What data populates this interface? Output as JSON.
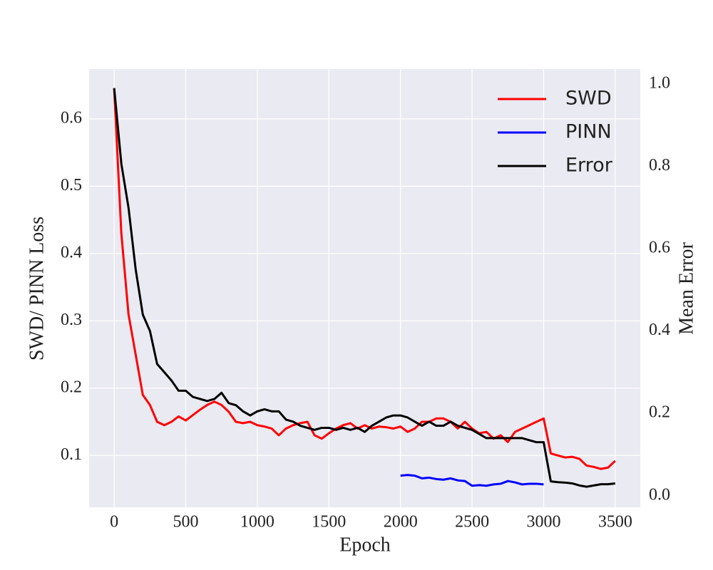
{
  "chart_data": {
    "type": "line",
    "xlabel": "Epoch",
    "ylabel": "SWD/ PINN Loss",
    "y2label": "Mean Error",
    "x": [
      0,
      50,
      100,
      150,
      200,
      250,
      300,
      350,
      400,
      450,
      500,
      550,
      600,
      650,
      700,
      750,
      800,
      850,
      900,
      950,
      1000,
      1050,
      1100,
      1150,
      1200,
      1250,
      1300,
      1350,
      1400,
      1450,
      1500,
      1550,
      1600,
      1650,
      1700,
      1750,
      1800,
      1850,
      1900,
      1950,
      2000,
      2050,
      2100,
      2150,
      2200,
      2250,
      2300,
      2350,
      2400,
      2450,
      2500,
      2550,
      2600,
      2650,
      2700,
      2750,
      2800,
      2850,
      2900,
      2950,
      3000,
      3050,
      3100,
      3150,
      3200,
      3250,
      3300,
      3350,
      3400,
      3450,
      3500
    ],
    "series": [
      {
        "name": "SWD",
        "color": "#ff0000",
        "axis": "y",
        "values": [
          0.645,
          0.43,
          0.31,
          0.25,
          0.19,
          0.175,
          0.15,
          0.145,
          0.15,
          0.158,
          0.152,
          0.16,
          0.168,
          0.175,
          0.18,
          0.175,
          0.165,
          0.15,
          0.148,
          0.15,
          0.145,
          0.143,
          0.14,
          0.13,
          0.14,
          0.145,
          0.148,
          0.15,
          0.13,
          0.125,
          0.133,
          0.14,
          0.145,
          0.148,
          0.14,
          0.145,
          0.14,
          0.143,
          0.142,
          0.14,
          0.143,
          0.135,
          0.14,
          0.15,
          0.15,
          0.155,
          0.155,
          0.15,
          0.14,
          0.15,
          0.14,
          0.133,
          0.135,
          0.125,
          0.13,
          0.12,
          0.135,
          0.14,
          0.145,
          0.15,
          0.155,
          0.103,
          0.1,
          0.097,
          0.098,
          0.095,
          0.085,
          0.083,
          0.08,
          0.082,
          0.092
        ]
      },
      {
        "name": "PINN",
        "color": "#0000ff",
        "axis": "y",
        "values": [
          null,
          null,
          null,
          null,
          null,
          null,
          null,
          null,
          null,
          null,
          null,
          null,
          null,
          null,
          null,
          null,
          null,
          null,
          null,
          null,
          null,
          null,
          null,
          null,
          null,
          null,
          null,
          null,
          null,
          null,
          null,
          null,
          null,
          null,
          null,
          null,
          null,
          null,
          null,
          null,
          0.07,
          0.071,
          0.07,
          0.066,
          0.067,
          0.065,
          0.064,
          0.066,
          0.063,
          0.062,
          0.055,
          0.056,
          0.055,
          0.057,
          0.058,
          0.062,
          0.06,
          0.057,
          0.058,
          0.058,
          0.057,
          null,
          null,
          null,
          null,
          null,
          null,
          null,
          null,
          null,
          null
        ]
      },
      {
        "name": "Error",
        "color": "#000000",
        "axis": "y2",
        "values": [
          0.99,
          0.806,
          0.7,
          0.55,
          0.44,
          0.4,
          0.32,
          0.3,
          0.28,
          0.255,
          0.255,
          0.24,
          0.235,
          0.23,
          0.235,
          0.25,
          0.225,
          0.22,
          0.205,
          0.195,
          0.205,
          0.21,
          0.205,
          0.205,
          0.185,
          0.18,
          0.17,
          0.165,
          0.16,
          0.165,
          0.165,
          0.16,
          0.165,
          0.16,
          0.165,
          0.155,
          0.17,
          0.18,
          0.19,
          0.195,
          0.195,
          0.19,
          0.18,
          0.17,
          0.18,
          0.17,
          0.17,
          0.18,
          0.17,
          0.165,
          0.16,
          0.15,
          0.14,
          0.14,
          0.14,
          0.14,
          0.14,
          0.14,
          0.135,
          0.13,
          0.13,
          0.035,
          0.033,
          0.032,
          0.03,
          0.025,
          0.022,
          0.025,
          0.028,
          0.028,
          0.03
        ]
      }
    ],
    "xlim": [
      -175,
      3675
    ],
    "xticks": [
      0,
      500,
      1000,
      1500,
      2000,
      2500,
      3000,
      3500
    ],
    "ylim": [
      0.023,
      0.674
    ],
    "yticks": [
      0.1,
      0.2,
      0.3,
      0.4,
      0.5,
      0.6
    ],
    "y2lim": [
      -0.028,
      1.036
    ],
    "y2ticks": [
      {
        "value": 0,
        "label": "0.0"
      },
      0.2,
      0.4,
      0.6,
      0.8,
      {
        "value": 1,
        "label": "1.0"
      }
    ],
    "grid": true,
    "legend": "upper-right"
  }
}
